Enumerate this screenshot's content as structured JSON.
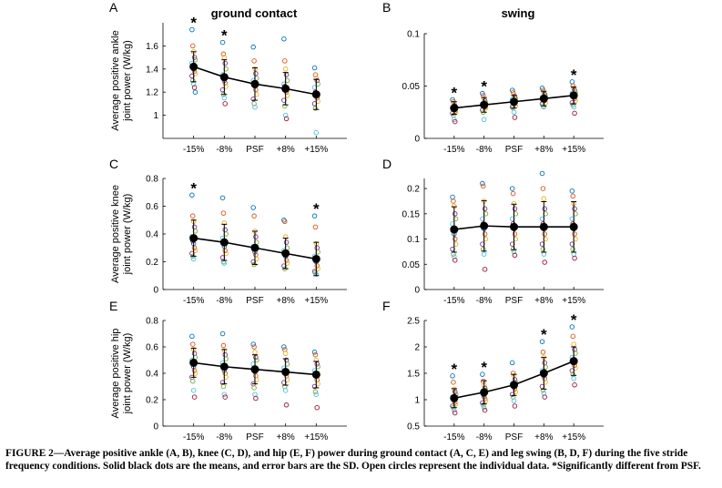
{
  "figure": {
    "col_titles": [
      "ground contact",
      "swing"
    ],
    "caption": "FIGURE 2—Average positive ankle (A, B), knee (C, D), and hip (E, F) power during ground contact (A, C, E) and leg swing (B, D, F) during the five stride frequency conditions. Solid black dots are the means, and error bars are the SD. Open circles represent the individual data. *Significantly different from PSF.",
    "colors": {
      "mean": "#000000",
      "axis": "#000000",
      "individual": [
        "#0072BD",
        "#D95319",
        "#EDB120",
        "#7E2F8E",
        "#77AC30",
        "#4DBEEE",
        "#A2142F"
      ]
    }
  },
  "chart_data": [
    {
      "panel": "A",
      "type": "scatter",
      "ylabel": [
        "Average positive ankle",
        "joint power (W/kg)"
      ],
      "categories": [
        "-15%",
        "-8%",
        "PSF",
        "+8%",
        "+15%"
      ],
      "ylim": [
        0.8,
        1.8
      ],
      "yticks": [
        1,
        1.2,
        1.4,
        1.6
      ],
      "ytick_labels": [
        "1",
        "1.2",
        "1.4",
        "1.6"
      ],
      "means": [
        1.42,
        1.33,
        1.27,
        1.23,
        1.18
      ],
      "sd": [
        0.13,
        0.15,
        0.14,
        0.14,
        0.13
      ],
      "significant": [
        true,
        true,
        false,
        false,
        false
      ],
      "individual": [
        [
          1.74,
          1.6,
          1.55,
          1.5,
          1.48,
          1.45,
          1.42,
          1.4,
          1.38,
          1.36,
          1.34,
          1.3,
          1.27,
          1.24,
          1.2
        ],
        [
          1.63,
          1.53,
          1.5,
          1.45,
          1.4,
          1.35,
          1.32,
          1.3,
          1.28,
          1.25,
          1.22,
          1.18,
          1.15,
          1.1
        ],
        [
          1.59,
          1.47,
          1.4,
          1.36,
          1.32,
          1.3,
          1.28,
          1.25,
          1.22,
          1.18,
          1.14,
          1.1,
          1.07
        ],
        [
          1.66,
          1.47,
          1.4,
          1.35,
          1.3,
          1.27,
          1.25,
          1.22,
          1.2,
          1.17,
          1.13,
          1.08,
          1.0,
          0.97
        ],
        [
          1.41,
          1.35,
          1.32,
          1.3,
          1.27,
          1.24,
          1.2,
          1.18,
          1.15,
          1.12,
          1.1,
          1.06,
          0.85
        ]
      ]
    },
    {
      "panel": "B",
      "type": "scatter",
      "ylabel": [],
      "categories": [
        "-15%",
        "-8%",
        "PSF",
        "+8%",
        "+15%"
      ],
      "ylim": [
        0,
        0.1
      ],
      "yticks": [
        0,
        0.05,
        0.1
      ],
      "ytick_labels": [
        "0",
        "0.05",
        "0.1"
      ],
      "means": [
        0.029,
        0.032,
        0.035,
        0.038,
        0.041
      ],
      "sd": [
        0.006,
        0.007,
        0.006,
        0.007,
        0.008
      ],
      "significant": [
        true,
        true,
        false,
        false,
        true
      ],
      "individual": [
        [
          0.037,
          0.035,
          0.033,
          0.031,
          0.03,
          0.029,
          0.028,
          0.027,
          0.026,
          0.025,
          0.024,
          0.022,
          0.018,
          0.016
        ],
        [
          0.043,
          0.041,
          0.038,
          0.036,
          0.034,
          0.033,
          0.032,
          0.031,
          0.03,
          0.029,
          0.027,
          0.025,
          0.018
        ],
        [
          0.046,
          0.044,
          0.042,
          0.04,
          0.038,
          0.037,
          0.035,
          0.034,
          0.033,
          0.031,
          0.03,
          0.029,
          0.025,
          0.02
        ],
        [
          0.048,
          0.046,
          0.044,
          0.042,
          0.04,
          0.039,
          0.038,
          0.037,
          0.036,
          0.034,
          0.033,
          0.031,
          0.03
        ],
        [
          0.054,
          0.05,
          0.048,
          0.046,
          0.044,
          0.043,
          0.042,
          0.04,
          0.038,
          0.036,
          0.034,
          0.032,
          0.03,
          0.024
        ]
      ]
    },
    {
      "panel": "C",
      "type": "scatter",
      "ylabel": [
        "Average positive knee",
        "joint power (W/kg)"
      ],
      "categories": [
        "-15%",
        "-8%",
        "PSF",
        "+8%",
        "+15%"
      ],
      "ylim": [
        0,
        0.8
      ],
      "yticks": [
        0,
        0.2,
        0.4,
        0.6,
        0.8
      ],
      "ytick_labels": [
        "0",
        "0.2",
        "0.4",
        "0.6",
        "0.8"
      ],
      "means": [
        0.37,
        0.34,
        0.3,
        0.26,
        0.22
      ],
      "sd": [
        0.13,
        0.13,
        0.12,
        0.11,
        0.12
      ],
      "significant": [
        true,
        false,
        false,
        false,
        true
      ],
      "individual": [
        [
          0.68,
          0.53,
          0.49,
          0.45,
          0.42,
          0.38,
          0.35,
          0.33,
          0.3,
          0.28,
          0.26,
          0.24,
          0.22
        ],
        [
          0.66,
          0.55,
          0.48,
          0.43,
          0.4,
          0.37,
          0.34,
          0.31,
          0.28,
          0.26,
          0.23,
          0.2,
          0.19
        ],
        [
          0.59,
          0.53,
          0.42,
          0.38,
          0.34,
          0.31,
          0.29,
          0.27,
          0.25,
          0.22,
          0.2,
          0.18
        ],
        [
          0.5,
          0.49,
          0.38,
          0.34,
          0.3,
          0.28,
          0.26,
          0.24,
          0.21,
          0.19,
          0.17,
          0.15
        ],
        [
          0.53,
          0.45,
          0.33,
          0.3,
          0.27,
          0.24,
          0.22,
          0.2,
          0.17,
          0.15,
          0.13,
          0.12,
          0.11
        ]
      ]
    },
    {
      "panel": "D",
      "type": "scatter",
      "ylabel": [],
      "categories": [
        "-15%",
        "-8%",
        "PSF",
        "+8%",
        "+15%"
      ],
      "ylim": [
        0,
        0.22
      ],
      "yticks": [
        0,
        0.05,
        0.1,
        0.15,
        0.2
      ],
      "ytick_labels": [
        "0",
        "0.05",
        "0.1",
        "0.15",
        "0.2"
      ],
      "means": [
        0.119,
        0.126,
        0.124,
        0.124,
        0.124
      ],
      "sd": [
        0.045,
        0.05,
        0.045,
        0.05,
        0.05
      ],
      "significant": [
        false,
        false,
        false,
        false,
        false
      ],
      "individual": [
        [
          0.183,
          0.175,
          0.165,
          0.15,
          0.14,
          0.13,
          0.12,
          0.11,
          0.1,
          0.09,
          0.08,
          0.07,
          0.065,
          0.058
        ],
        [
          0.21,
          0.205,
          0.175,
          0.16,
          0.15,
          0.14,
          0.13,
          0.12,
          0.11,
          0.1,
          0.09,
          0.08,
          0.07,
          0.04
        ],
        [
          0.2,
          0.19,
          0.17,
          0.16,
          0.15,
          0.14,
          0.13,
          0.12,
          0.11,
          0.1,
          0.09,
          0.08,
          0.075,
          0.068
        ],
        [
          0.23,
          0.2,
          0.18,
          0.16,
          0.15,
          0.14,
          0.13,
          0.12,
          0.11,
          0.1,
          0.09,
          0.08,
          0.07,
          0.054
        ],
        [
          0.195,
          0.185,
          0.17,
          0.16,
          0.15,
          0.14,
          0.13,
          0.12,
          0.11,
          0.1,
          0.09,
          0.08,
          0.07,
          0.062
        ]
      ]
    },
    {
      "panel": "E",
      "type": "scatter",
      "ylabel": [
        "Average positive hip",
        "joint power (W/kg)"
      ],
      "categories": [
        "-15%",
        "-8%",
        "PSF",
        "+8%",
        "+15%"
      ],
      "ylim": [
        0,
        0.8
      ],
      "yticks": [
        0,
        0.2,
        0.4,
        0.6,
        0.8
      ],
      "ytick_labels": [
        "0",
        "0.2",
        "0.4",
        "0.6",
        "0.8"
      ],
      "means": [
        0.48,
        0.45,
        0.43,
        0.41,
        0.39
      ],
      "sd": [
        0.11,
        0.13,
        0.11,
        0.1,
        0.1
      ],
      "significant": [
        false,
        false,
        false,
        false,
        false
      ],
      "individual": [
        [
          0.68,
          0.62,
          0.58,
          0.55,
          0.52,
          0.5,
          0.48,
          0.45,
          0.42,
          0.4,
          0.37,
          0.34,
          0.27,
          0.22
        ],
        [
          0.7,
          0.61,
          0.57,
          0.54,
          0.51,
          0.48,
          0.45,
          0.42,
          0.4,
          0.37,
          0.33,
          0.3,
          0.24,
          0.22
        ],
        [
          0.62,
          0.6,
          0.56,
          0.52,
          0.5,
          0.47,
          0.44,
          0.41,
          0.38,
          0.35,
          0.32,
          0.29,
          0.24,
          0.21
        ],
        [
          0.6,
          0.58,
          0.55,
          0.5,
          0.47,
          0.44,
          0.42,
          0.4,
          0.38,
          0.35,
          0.33,
          0.3,
          0.27,
          0.16
        ],
        [
          0.56,
          0.54,
          0.5,
          0.47,
          0.45,
          0.42,
          0.4,
          0.38,
          0.35,
          0.32,
          0.3,
          0.26,
          0.24,
          0.14
        ]
      ]
    },
    {
      "panel": "F",
      "type": "scatter",
      "ylabel": [],
      "categories": [
        "-15%",
        "-8%",
        "PSF",
        "+8%",
        "+15%"
      ],
      "ylim": [
        0.5,
        2.5
      ],
      "yticks": [
        0.5,
        1,
        1.5,
        2,
        2.5
      ],
      "ytick_labels": [
        "0.5",
        "1",
        "1.5",
        "2",
        "2.5"
      ],
      "means": [
        1.03,
        1.14,
        1.28,
        1.5,
        1.73
      ],
      "sd": [
        0.18,
        0.22,
        0.2,
        0.3,
        0.27
      ],
      "significant": [
        true,
        true,
        false,
        true,
        true
      ],
      "individual": [
        [
          1.45,
          1.33,
          1.2,
          1.15,
          1.1,
          1.05,
          1.02,
          0.98,
          0.95,
          0.92,
          0.88,
          0.85,
          0.8,
          0.75
        ],
        [
          1.48,
          1.35,
          1.28,
          1.22,
          1.18,
          1.14,
          1.1,
          1.06,
          1.02,
          0.98,
          0.94,
          0.9,
          0.85,
          0.8
        ],
        [
          1.7,
          1.5,
          1.45,
          1.38,
          1.33,
          1.3,
          1.27,
          1.24,
          1.2,
          1.15,
          1.1,
          1.05,
          0.98,
          0.88
        ],
        [
          2.1,
          1.9,
          1.8,
          1.7,
          1.62,
          1.55,
          1.5,
          1.45,
          1.4,
          1.33,
          1.25,
          1.18,
          1.12,
          1.05
        ],
        [
          2.38,
          2.2,
          2.05,
          1.95,
          1.88,
          1.8,
          1.75,
          1.7,
          1.65,
          1.6,
          1.55,
          1.48,
          1.4,
          1.28
        ]
      ]
    }
  ]
}
